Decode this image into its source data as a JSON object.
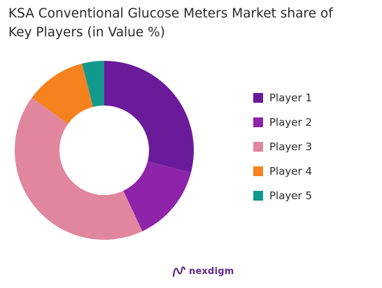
{
  "title_line1": "KSA Conventional Glucose Meters Market share of",
  "title_line2": "Key Players (in Value %)",
  "brand": "nexdigm",
  "brand_color": "#5b2a8c",
  "chart_data": {
    "type": "pie",
    "donut": true,
    "legend_position": "right",
    "categories": [
      "Player 1",
      "Player 2",
      "Player 3",
      "Player 4",
      "Player 5"
    ],
    "values": [
      29,
      14,
      42,
      11,
      4
    ],
    "colors": [
      "#6a1b9a",
      "#8e24aa",
      "#e0879f",
      "#f5821f",
      "#11998e"
    ]
  }
}
